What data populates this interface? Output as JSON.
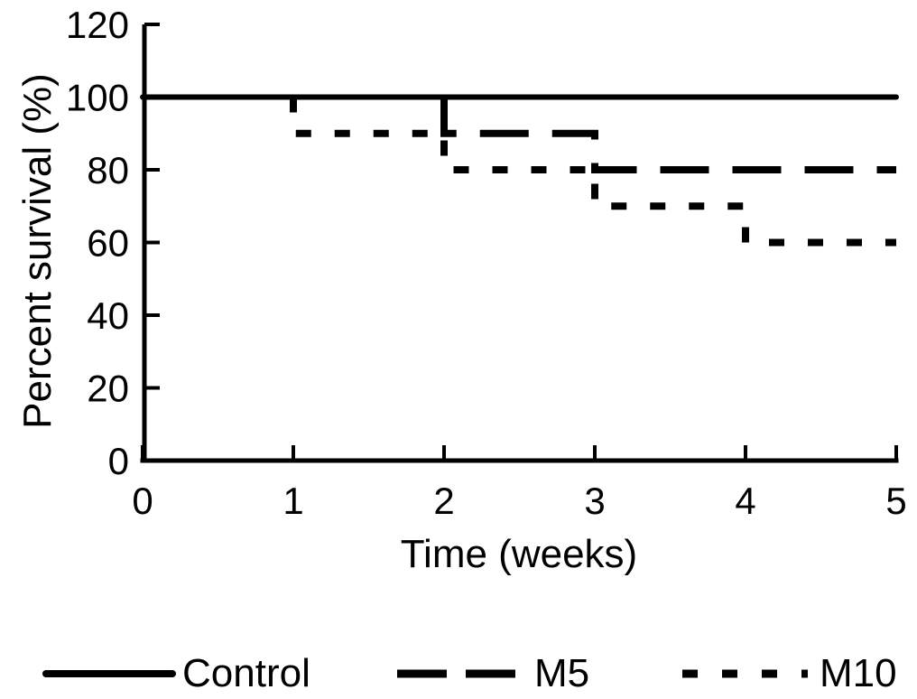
{
  "figure": {
    "background": "#ffffff",
    "ink": "#000000"
  },
  "chart_data": {
    "type": "line",
    "subtype": "kaplan-meier-step-survival",
    "title": "",
    "xlabel": "Time (weeks)",
    "ylabel": "Percent survival (%)",
    "xlim": [
      0,
      5
    ],
    "ylim": [
      0,
      120
    ],
    "xticks": [
      0,
      1,
      2,
      3,
      4,
      5
    ],
    "yticks": [
      0,
      20,
      40,
      60,
      80,
      100,
      120
    ],
    "grid": false,
    "legend_position": "bottom",
    "series": [
      {
        "name": "Control",
        "line_style": "solid",
        "points": [
          [
            0,
            100
          ],
          [
            5,
            100
          ]
        ]
      },
      {
        "name": "M5",
        "line_style": "dashed",
        "points": [
          [
            0,
            100
          ],
          [
            2,
            100
          ],
          [
            2,
            90
          ],
          [
            3,
            90
          ],
          [
            3,
            80
          ],
          [
            5,
            80
          ]
        ]
      },
      {
        "name": "M10",
        "line_style": "dotted",
        "points": [
          [
            0,
            100
          ],
          [
            1,
            100
          ],
          [
            1,
            90
          ],
          [
            2,
            90
          ],
          [
            2,
            80
          ],
          [
            3,
            80
          ],
          [
            3,
            70
          ],
          [
            4,
            70
          ],
          [
            4,
            60
          ],
          [
            5,
            60
          ]
        ]
      }
    ],
    "legend": {
      "entries": [
        {
          "label": "Control",
          "line_style": "solid"
        },
        {
          "label": "M5",
          "line_style": "dashed"
        },
        {
          "label": "M10",
          "line_style": "dotted"
        }
      ]
    }
  },
  "styles": {
    "ink": "#000000",
    "plot_dash": {
      "solid": "",
      "dashed": "54 26",
      "dotted": "17 26"
    },
    "plot_width": {
      "solid": 6,
      "dashed": 8,
      "dotted": 8
    },
    "legend_dash": {
      "solid": "",
      "dashed": "55 21",
      "dotted": "17 27"
    },
    "legend_width": {
      "solid": 8,
      "dashed": 9,
      "dotted": 9
    }
  }
}
